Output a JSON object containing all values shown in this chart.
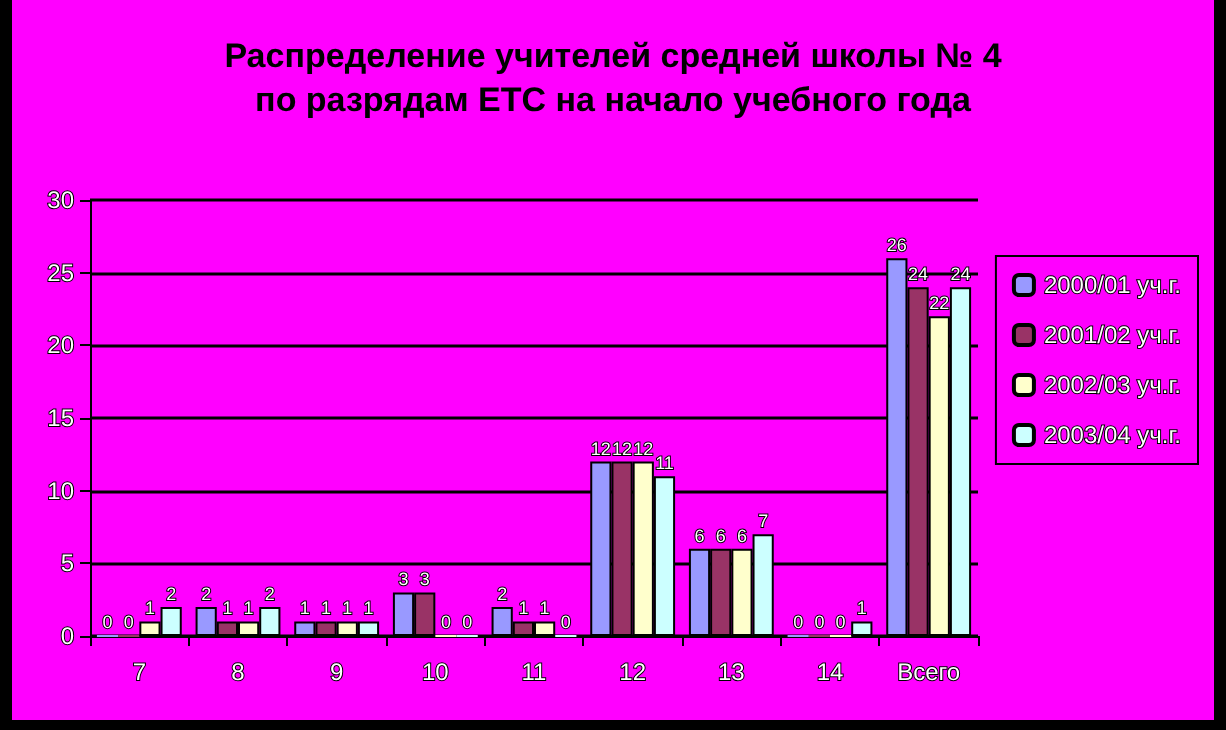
{
  "chart_data": {
    "type": "bar",
    "title": "Распределение учителей средней школы № 4\nпо разрядам ЕТС на начало учебного года",
    "categories": [
      "7",
      "8",
      "9",
      "10",
      "11",
      "12",
      "13",
      "14",
      "Всего"
    ],
    "series": [
      {
        "name": "2000/01 уч.г.",
        "color": "#9999ff",
        "values": [
          0,
          2,
          1,
          3,
          2,
          12,
          6,
          0,
          26
        ]
      },
      {
        "name": "2001/02 уч.г.",
        "color": "#993366",
        "values": [
          0,
          1,
          1,
          3,
          1,
          12,
          6,
          0,
          24
        ]
      },
      {
        "name": "2002/03 уч.г.",
        "color": "#ffffcc",
        "values": [
          1,
          1,
          1,
          0,
          1,
          12,
          6,
          0,
          22
        ]
      },
      {
        "name": "2003/04 уч.г.",
        "color": "#ccffff",
        "values": [
          2,
          2,
          1,
          0,
          0,
          11,
          7,
          1,
          24
        ]
      }
    ],
    "ylim": [
      0,
      30
    ],
    "yticks": [
      0,
      5,
      10,
      15,
      20,
      25,
      30
    ],
    "grid": "y",
    "legend": "right",
    "data_labels": true
  }
}
